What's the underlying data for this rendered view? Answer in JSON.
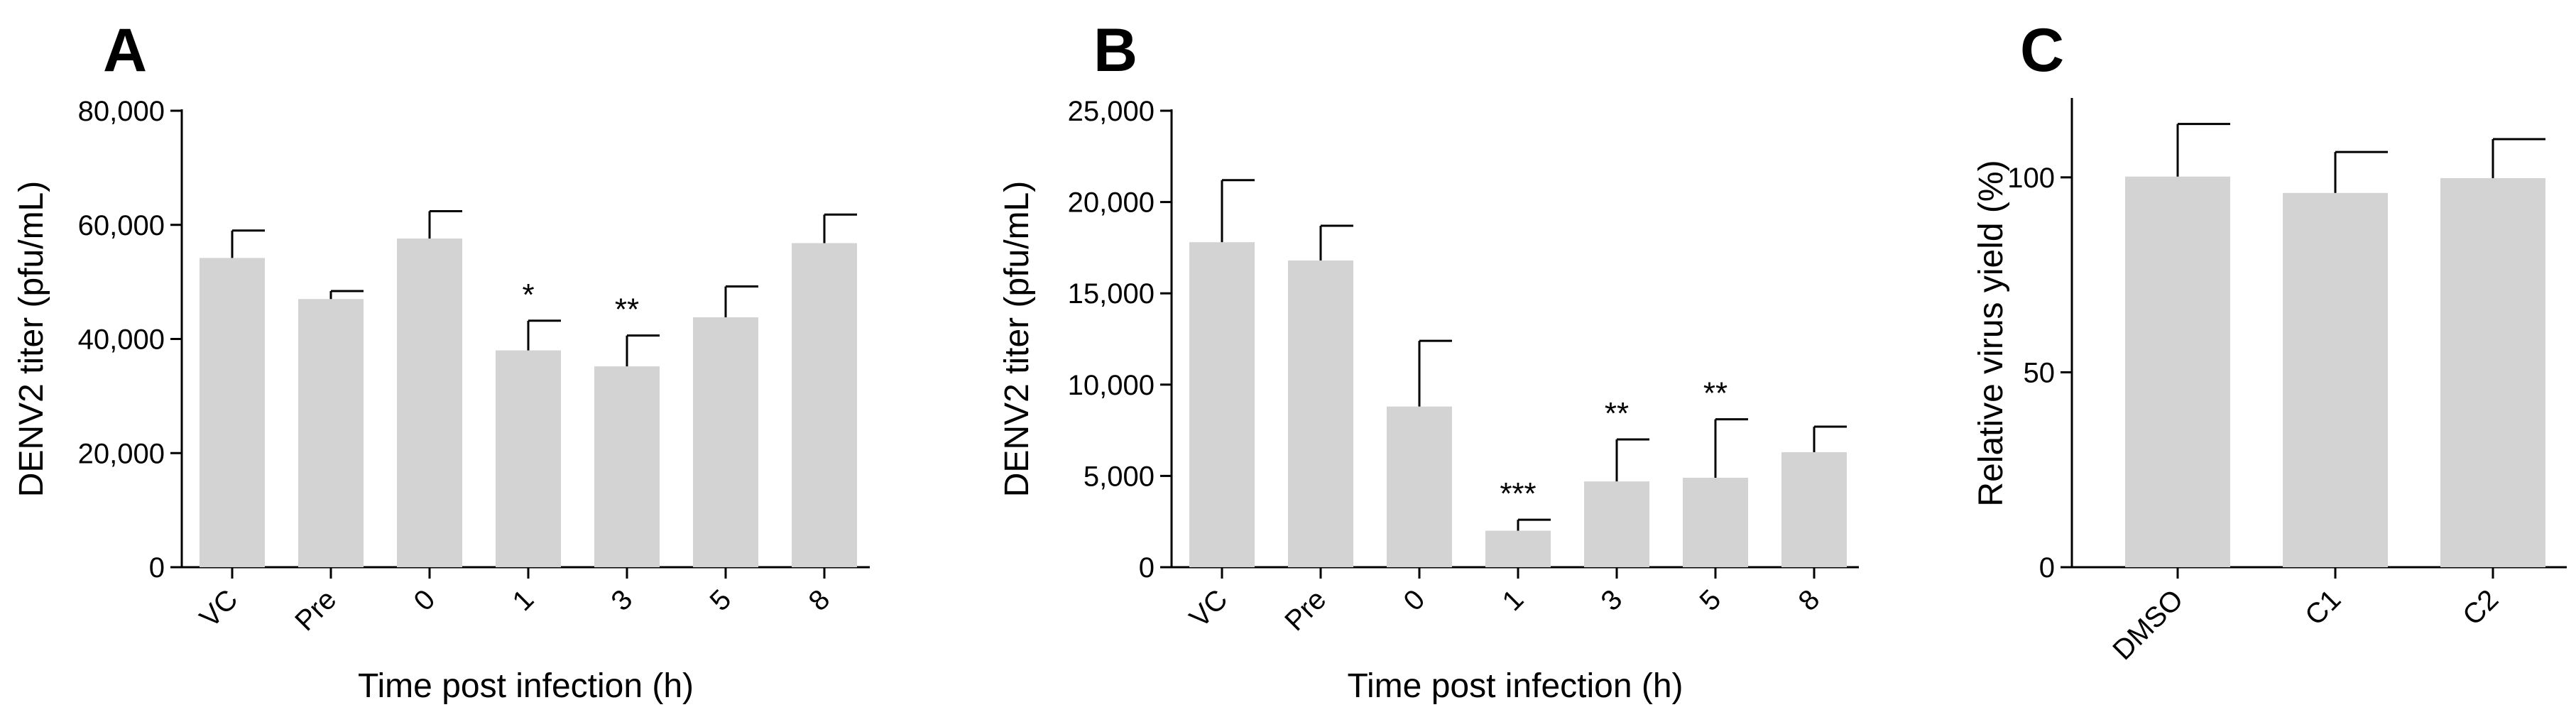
{
  "chart_data": [
    {
      "type": "bar",
      "panel": "A",
      "title": "",
      "categories": [
        "VC",
        "Pre",
        "0",
        "1",
        "3",
        "5",
        "8"
      ],
      "values": [
        54200,
        47000,
        57600,
        38000,
        35200,
        43800,
        56800
      ],
      "errors": [
        4800,
        1400,
        4800,
        5200,
        5400,
        5400,
        5000
      ],
      "significance": [
        "",
        "",
        "",
        "*",
        "**",
        "",
        ""
      ],
      "xlabel": "Time post infection (h)",
      "ylabel": "DENV2 titer (pfu/mL)",
      "ylim": [
        0,
        80000
      ],
      "yticks": [
        0,
        20000,
        40000,
        60000,
        80000
      ],
      "ytick_labels": [
        "0",
        "20,000",
        "40,000",
        "60,000",
        "80,000"
      ]
    },
    {
      "type": "bar",
      "panel": "B",
      "title": "",
      "categories": [
        "VC",
        "Pre",
        "0",
        "1",
        "3",
        "5",
        "8"
      ],
      "values": [
        17800,
        16800,
        8800,
        2000,
        4700,
        4900,
        6300
      ],
      "errors": [
        3400,
        1900,
        3600,
        600,
        2300,
        3200,
        1400
      ],
      "significance": [
        "",
        "",
        "",
        "***",
        "**",
        "**",
        ""
      ],
      "xlabel": "Time post infection (h)",
      "ylabel": "DENV2 titer (pfu/mL)",
      "ylim": [
        0,
        25000
      ],
      "yticks": [
        0,
        5000,
        10000,
        15000,
        20000,
        25000
      ],
      "ytick_labels": [
        "0",
        "5,000",
        "10,000",
        "15,000",
        "20,000",
        "25,000"
      ]
    },
    {
      "type": "bar",
      "panel": "C",
      "title": "",
      "categories": [
        "DMSO",
        "C1",
        "C2"
      ],
      "values": [
        100.2,
        96,
        99.8
      ],
      "errors": [
        13.5,
        10.5,
        10
      ],
      "significance": [
        "",
        "",
        ""
      ],
      "xlabel": "",
      "ylabel": "Relative virus yield (%)",
      "ylim": [
        0,
        120
      ],
      "yticks": [
        0,
        50,
        100
      ],
      "ytick_labels": [
        "0",
        "50",
        "100"
      ]
    }
  ]
}
